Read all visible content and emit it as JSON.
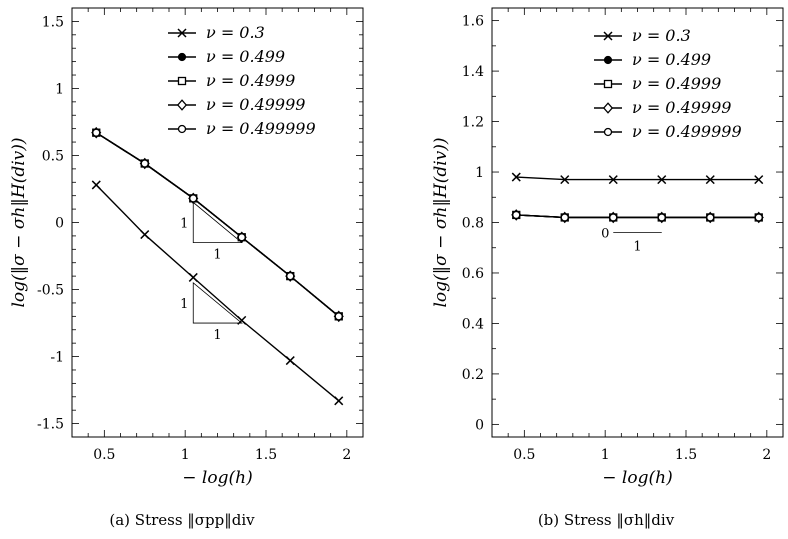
{
  "chart_data": [
    {
      "type": "line",
      "caption": "(a) Stress ‖σpp‖div",
      "xlabel": "− log(h)",
      "ylabel": "log(‖σ − σh‖H(div))",
      "xlim": [
        0.3,
        2.1
      ],
      "ylim": [
        -1.6,
        1.6
      ],
      "xticks": [
        0.5,
        1,
        1.5,
        2
      ],
      "xtick_labels": [
        "0.5",
        "1",
        "1.5",
        "2"
      ],
      "yticks": [
        -1.5,
        -1,
        -0.5,
        0,
        0.5,
        1,
        1.5
      ],
      "ytick_labels": [
        "-1.5",
        "-1",
        "-0.5",
        "0",
        "0.5",
        "1",
        "1.5"
      ],
      "legend_position": "top-right",
      "x": [
        0.45,
        0.75,
        1.05,
        1.35,
        1.65,
        1.95
      ],
      "series": [
        {
          "name": "ν = 0.3",
          "marker": "cross",
          "values": [
            0.28,
            -0.09,
            -0.41,
            -0.73,
            -1.03,
            -1.33
          ]
        },
        {
          "name": "ν = 0.499",
          "marker": "filled-circle",
          "values": [
            0.67,
            0.44,
            0.18,
            -0.11,
            -0.4,
            -0.7
          ]
        },
        {
          "name": "ν = 0.4999",
          "marker": "square",
          "values": [
            0.67,
            0.44,
            0.18,
            -0.11,
            -0.4,
            -0.7
          ]
        },
        {
          "name": "ν = 0.49999",
          "marker": "diamond",
          "values": [
            0.67,
            0.44,
            0.18,
            -0.11,
            -0.4,
            -0.7
          ]
        },
        {
          "name": "ν = 0.499999",
          "marker": "open-circle",
          "values": [
            0.67,
            0.44,
            0.18,
            -0.11,
            -0.4,
            -0.7
          ]
        }
      ],
      "slope_triangles": [
        {
          "rise_label": "1",
          "run_label": "1",
          "corner": [
            1.05,
            -0.15
          ],
          "run": 0.3,
          "rise": 0.3
        },
        {
          "rise_label": "1",
          "run_label": "1",
          "corner": [
            1.05,
            -0.75
          ],
          "run": 0.3,
          "rise": 0.3
        }
      ]
    },
    {
      "type": "line",
      "caption": "(b) Stress ‖σh‖div",
      "xlabel": "− log(h)",
      "ylabel": "log(‖σ − σh‖H(div))",
      "xlim": [
        0.3,
        2.1
      ],
      "ylim": [
        -0.05,
        1.65
      ],
      "xticks": [
        0.5,
        1,
        1.5,
        2
      ],
      "xtick_labels": [
        "0.5",
        "1",
        "1.5",
        "2"
      ],
      "yticks": [
        0,
        0.2,
        0.4,
        0.6,
        0.8,
        1,
        1.2,
        1.4,
        1.6
      ],
      "ytick_labels": [
        "0",
        "0.2",
        "0.4",
        "0.6",
        "0.8",
        "1",
        "1.2",
        "1.4",
        "1.6"
      ],
      "legend_position": "top-right",
      "x": [
        0.45,
        0.75,
        1.05,
        1.35,
        1.65,
        1.95
      ],
      "series": [
        {
          "name": "ν = 0.3",
          "marker": "cross",
          "values": [
            0.98,
            0.97,
            0.97,
            0.97,
            0.97,
            0.97
          ]
        },
        {
          "name": "ν = 0.499",
          "marker": "filled-circle",
          "values": [
            0.83,
            0.82,
            0.82,
            0.82,
            0.82,
            0.82
          ]
        },
        {
          "name": "ν = 0.4999",
          "marker": "square",
          "values": [
            0.83,
            0.82,
            0.82,
            0.82,
            0.82,
            0.82
          ]
        },
        {
          "name": "ν = 0.49999",
          "marker": "diamond",
          "values": [
            0.83,
            0.82,
            0.82,
            0.82,
            0.82,
            0.82
          ]
        },
        {
          "name": "ν = 0.499999",
          "marker": "open-circle",
          "values": [
            0.83,
            0.82,
            0.82,
            0.82,
            0.82,
            0.82
          ]
        }
      ],
      "slope_triangles": [
        {
          "rise_label": "0",
          "run_label": "1",
          "corner": [
            1.05,
            0.76
          ],
          "run": 0.3,
          "rise": 0
        }
      ]
    }
  ]
}
